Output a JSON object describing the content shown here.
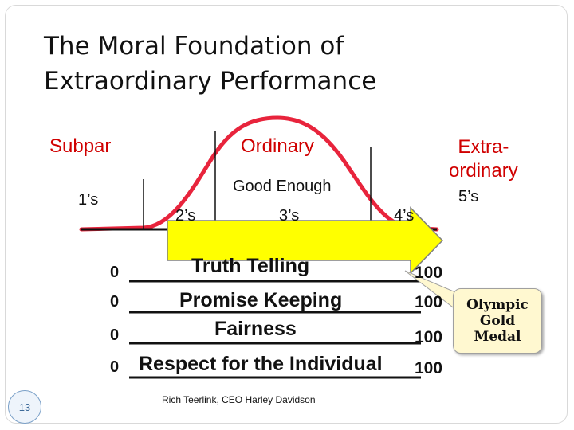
{
  "title_line1": "The Moral Foundation of",
  "title_line2": "Extraordinary Performance",
  "categories": {
    "subpar": "Subpar",
    "ordinary": "Ordinary",
    "extraordinary_line1": "Extra-",
    "extraordinary_line2": "ordinary"
  },
  "good_enough": "Good Enough",
  "ratings": {
    "ones": "1’s",
    "twos": "2’s",
    "threes": "3’s",
    "fours": "4’s",
    "fives": "5’s"
  },
  "scale_min": "0",
  "scale_max": "100",
  "values": [
    {
      "label": "Truth Telling",
      "min": "0",
      "max": "100"
    },
    {
      "label": "Promise Keeping",
      "min": "0",
      "max": "100"
    },
    {
      "label": "Fairness",
      "min": "0",
      "max": "100"
    },
    {
      "label": "Respect for the Individual",
      "min": "0",
      "max": "100"
    }
  ],
  "callout": {
    "line1": "Olympic",
    "line2": "Gold",
    "line3": "Medal"
  },
  "credit": "Rich Teerlink, CEO Harley Davidson",
  "slide_number": "13",
  "colors": {
    "curve": "#e8243c",
    "arrow_fill": "#ffff00",
    "category_text": "#d00000",
    "callout_fill": "#fff8d0"
  }
}
